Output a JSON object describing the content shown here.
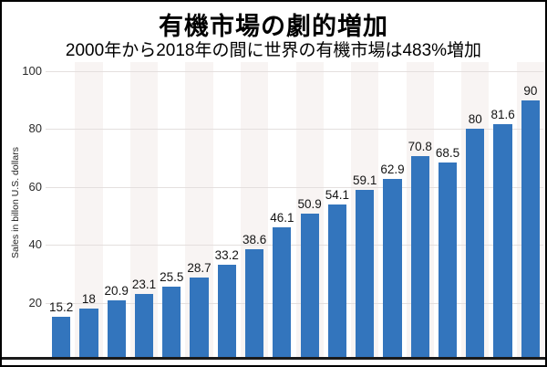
{
  "chart_data": {
    "type": "bar",
    "title": "有機市場の劇的増加",
    "subtitle": "2000年から2018年の間に世界の有機市場は483%増加",
    "ylabel": "Sales in billon U.S. dollars",
    "ylim": [
      0,
      100
    ],
    "yticks": [
      20,
      40,
      60,
      80,
      100
    ],
    "grid": "horizontal",
    "legend": "none",
    "x_tick_labels": [],
    "values": [
      15.2,
      18,
      20.9,
      23.1,
      25.5,
      28.7,
      33.2,
      38.6,
      46.1,
      50.9,
      54.1,
      59.1,
      62.9,
      70.8,
      68.5,
      80,
      81.6,
      90
    ],
    "value_labels": [
      "15.2",
      "18",
      "20.9",
      "23.1",
      "25.5",
      "28.7",
      "33.2",
      "38.6",
      "46.1",
      "50.9",
      "54.1",
      "59.1",
      "62.9",
      "70.8",
      "68.5",
      "80",
      "81.6",
      "90"
    ],
    "colors": {
      "bar": "#3375bd",
      "gridline": "#e4dfde",
      "column_band": "#f8f4f3",
      "axis_line": "#1a1a1a",
      "title_text": "#000000",
      "tick_text": "#2a2a2a"
    }
  }
}
